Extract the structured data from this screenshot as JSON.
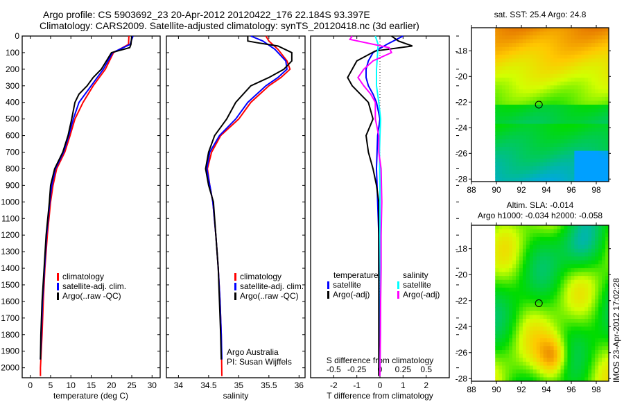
{
  "header": {
    "title_line1": "Argo profile: CS 5903692_23 20-Apr-2012 20120422_176 22.184S 93.397E",
    "title_line2": "Climatology: CARS2009. Satellite-adjusted climatology: synTS_20120418.nc (3d earlier)"
  },
  "colors": {
    "climatology": "#ff0000",
    "satellite": "#0000ff",
    "argo": "#000000",
    "sal_satellite": "#00ffff",
    "sal_argo": "#ff00ff"
  },
  "chart_data": [
    {
      "type": "line",
      "id": "temperature",
      "xlabel": "temperature (deg C)",
      "ylabel": "",
      "xlim": [
        -2,
        32
      ],
      "ylim": [
        2060,
        0
      ],
      "xticks": [
        0,
        5,
        10,
        15,
        20,
        25,
        30
      ],
      "yticks": [
        0,
        100,
        200,
        300,
        400,
        500,
        600,
        700,
        800,
        900,
        1000,
        1100,
        1200,
        1300,
        1400,
        1500,
        1600,
        1700,
        1800,
        1900,
        2000
      ],
      "legend": [
        "climatology",
        "satellite-adj. clim.",
        "Argo(..raw -QC)"
      ],
      "series": [
        {
          "name": "climatology",
          "depth": [
            0,
            50,
            100,
            200,
            300,
            400,
            500,
            600,
            700,
            800,
            900,
            1000,
            1200,
            1400,
            1600,
            1800,
            2000,
            2050
          ],
          "values": [
            24.3,
            24.2,
            20.5,
            18.5,
            15.5,
            13.0,
            11.0,
            9.8,
            8.5,
            6.5,
            5.6,
            5.0,
            4.2,
            3.6,
            3.2,
            2.9,
            2.5,
            2.5
          ]
        },
        {
          "name": "satellite-adj. clim.",
          "depth": [
            0,
            50,
            100,
            200,
            300,
            400,
            500,
            600,
            700,
            800,
            900,
            1000,
            1200,
            1400,
            1600,
            1800,
            1950
          ],
          "values": [
            25.3,
            24.6,
            20.3,
            18.0,
            15.0,
            12.0,
            10.6,
            9.5,
            8.2,
            6.2,
            5.3,
            4.8,
            4.0,
            3.5,
            3.0,
            2.7,
            2.5
          ]
        },
        {
          "name": "Argo(..raw -QC)",
          "depth": [
            0,
            50,
            70,
            100,
            200,
            250,
            300,
            350,
            400,
            500,
            600,
            700,
            800,
            900,
            1000,
            1200,
            1400,
            1600,
            1800,
            1950
          ],
          "values": [
            25.0,
            24.8,
            24.5,
            20.0,
            17.5,
            15.5,
            14.0,
            12.0,
            11.0,
            10.2,
            9.3,
            8.0,
            6.0,
            5.0,
            4.7,
            3.9,
            3.4,
            2.9,
            2.6,
            2.5
          ]
        }
      ]
    },
    {
      "type": "line",
      "id": "salinity",
      "xlabel": "salinity",
      "xlim": [
        33.8,
        36.1
      ],
      "ylim": [
        2060,
        0
      ],
      "xticks": [
        34,
        34.5,
        35,
        35.5,
        36
      ],
      "legend": [
        "climatology",
        "satellite-adj. clim.",
        "Argo(..raw -QC)"
      ],
      "annotation": [
        "Argo Australia",
        "PI: Susan Wijffels"
      ],
      "series": [
        {
          "name": "climatology",
          "depth": [
            0,
            30,
            80,
            150,
            200,
            250,
            300,
            400,
            500,
            600,
            700,
            800,
            900,
            1000,
            1200,
            1400,
            1600,
            1800,
            2050
          ],
          "values": [
            35.45,
            35.5,
            35.65,
            35.8,
            35.85,
            35.7,
            35.5,
            35.2,
            35.0,
            34.7,
            34.55,
            34.48,
            34.52,
            34.57,
            34.62,
            34.66,
            34.69,
            34.71,
            34.72
          ]
        },
        {
          "name": "satellite-adj. clim.",
          "depth": [
            0,
            30,
            80,
            150,
            200,
            250,
            300,
            400,
            500,
            600,
            700,
            800,
            900,
            1000,
            1200,
            1400,
            1600,
            1800,
            1950
          ],
          "values": [
            35.2,
            35.4,
            35.6,
            35.78,
            35.8,
            35.65,
            35.45,
            35.15,
            34.95,
            34.68,
            34.52,
            34.47,
            34.52,
            34.57,
            34.62,
            34.66,
            34.69,
            34.71,
            34.72
          ]
        },
        {
          "name": "Argo(..raw -QC)",
          "depth": [
            0,
            30,
            40,
            60,
            100,
            150,
            200,
            250,
            300,
            400,
            500,
            600,
            700,
            800,
            900,
            1000,
            1200,
            1400,
            1600,
            1800,
            1950
          ],
          "values": [
            35.15,
            35.15,
            35.3,
            35.65,
            35.88,
            35.88,
            35.75,
            35.5,
            35.2,
            34.95,
            34.8,
            34.6,
            34.5,
            34.45,
            34.5,
            34.58,
            34.62,
            34.66,
            34.68,
            34.7,
            34.71
          ]
        }
      ]
    },
    {
      "type": "line",
      "id": "difference",
      "xlabel": "T difference from climatology",
      "xlabel2": "S difference from climatology",
      "xlim": [
        -3,
        3
      ],
      "ylim": [
        2060,
        0
      ],
      "xticks": [
        -2,
        -1,
        0,
        1,
        2
      ],
      "xticks_s": [
        "-0.5",
        "-0.25",
        "0",
        "0.25",
        "0.5"
      ],
      "legend_left_title": "temperature",
      "legend_right_title": "salinity",
      "legend": [
        "satellite",
        "Argo(-adj)",
        "satellite",
        "Argo(-adj)"
      ],
      "series": [
        {
          "name": "temperature satellite",
          "depth": [
            0,
            50,
            100,
            150,
            200,
            250,
            300,
            350,
            400,
            500,
            600,
            800,
            1000,
            1200,
            1400,
            1600,
            1800,
            2050
          ],
          "values": [
            1.0,
            0.3,
            -0.3,
            -0.5,
            -0.6,
            -0.6,
            -0.5,
            -0.3,
            -0.15,
            0,
            -0.1,
            -0.15,
            -0.1,
            -0.05,
            -0.05,
            -0.03,
            -0.02,
            0
          ]
        },
        {
          "name": "temperature Argo(-adj)",
          "depth": [
            0,
            30,
            60,
            90,
            150,
            200,
            250,
            300,
            400,
            500,
            600,
            700,
            800,
            900,
            1000,
            1200,
            1400,
            1600,
            1800,
            2050
          ],
          "values": [
            0.5,
            0.8,
            1.4,
            -0.2,
            -1.0,
            -1.2,
            -1.4,
            -1.2,
            -0.5,
            -0.3,
            -0.6,
            -0.5,
            -0.3,
            -0.15,
            -0.05,
            -0.05,
            -0.05,
            -0.05,
            -0.05,
            -0.05
          ]
        },
        {
          "name": "salinity satellite",
          "depth": [
            0,
            50,
            100,
            200,
            300,
            400,
            500,
            600,
            700,
            900,
            1200,
            1500,
            1800,
            2050
          ],
          "values": [
            -0.2,
            -0.08,
            -0.1,
            -0.15,
            -0.15,
            -0.05,
            0.03,
            0.0,
            -0.02,
            0.0,
            0.0,
            0.02,
            0.02,
            0.0
          ]
        },
        {
          "name": "salinity Argo(-adj)",
          "depth": [
            0,
            20,
            70,
            100,
            150,
            200,
            250,
            300,
            350,
            400,
            500,
            600,
            700,
            800,
            1000,
            1200,
            1400,
            1600,
            1800,
            2050
          ],
          "values": [
            -1.2,
            -1.3,
            0.4,
            0.5,
            -0.3,
            -0.7,
            -0.95,
            -0.7,
            -0.4,
            -0.2,
            -0.2,
            -0.05,
            -0.05,
            0.05,
            0.08,
            0.05,
            0.05,
            0.03,
            0.02,
            0
          ]
        }
      ]
    },
    {
      "type": "heatmap",
      "id": "sst_map",
      "title": "sat. SST: 25.4 Argo: 24.8",
      "xlim": [
        88,
        99
      ],
      "ylim": [
        -28.2,
        -16.2
      ],
      "xticks": [
        88,
        90,
        92,
        94,
        96,
        98
      ],
      "yticks": [
        -18,
        -20,
        -22,
        -24,
        -26,
        -28
      ],
      "marker": {
        "lon": 93.4,
        "lat": -22.2
      }
    },
    {
      "type": "heatmap",
      "id": "sla_map",
      "title": "Altim. SLA: -0.014",
      "subtitle": "Argo h1000: -0.034 h2000: -0.058",
      "xlim": [
        88,
        99
      ],
      "ylim": [
        -28.2,
        -16.2
      ],
      "xticks": [
        88,
        90,
        92,
        94,
        96,
        98
      ],
      "yticks": [
        -18,
        -20,
        -22,
        -24,
        -26,
        -28
      ],
      "marker": {
        "lon": 93.4,
        "lat": -22.2
      }
    }
  ],
  "footer": {
    "timestamp": "IMOS 23-Apr-2012 17:02:28"
  }
}
